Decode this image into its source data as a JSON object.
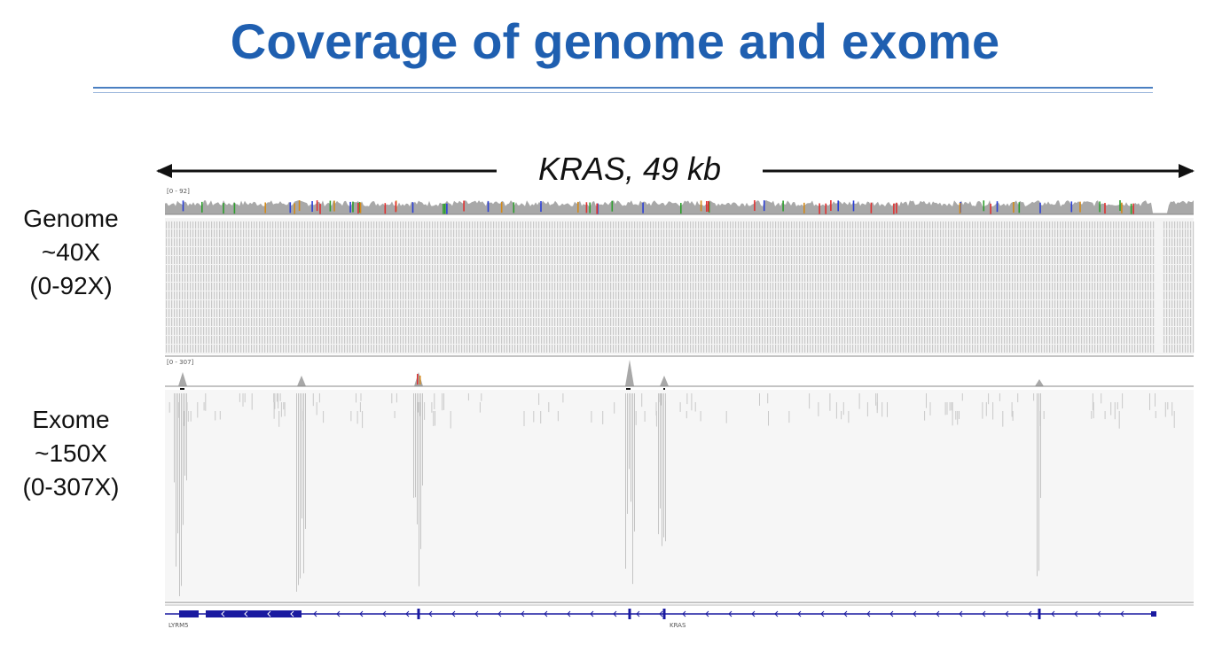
{
  "title": "Coverage of genome and exome",
  "span_label": "KRAS, 49 kb",
  "tracks": {
    "genome": {
      "label_lines": [
        "Genome",
        "~40X",
        "(0-92X)"
      ],
      "range_label": "[0 - 92]"
    },
    "exome": {
      "label_lines": [
        "Exome",
        "~150X",
        "(0-307X)"
      ],
      "range_label": "[0 - 307]"
    }
  },
  "genes": [
    "LYRM5",
    "KRAS"
  ],
  "colors": {
    "title": "#1f5fb0",
    "coverage": "#a8a8a8",
    "reads": "#c8c8c8",
    "gene": "#1a1aa0"
  }
}
